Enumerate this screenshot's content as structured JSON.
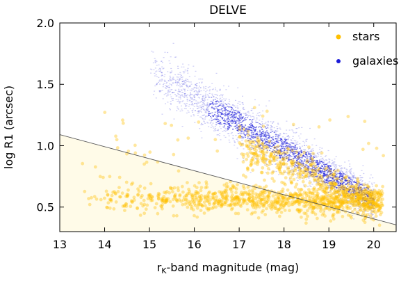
{
  "chart_data": {
    "type": "scatter",
    "title": "DELVE",
    "xlabel_main": "r",
    "xlabel_sub": "K",
    "xlabel_rest": "-band magnitude (mag)",
    "ylabel": "log R1 (arcsec)",
    "xlim": [
      13,
      20.5
    ],
    "ylim": [
      0.3,
      2.0
    ],
    "x_ticks": [
      13,
      14,
      15,
      16,
      17,
      18,
      19,
      20
    ],
    "x_tick_labels": [
      "13",
      "14",
      "15",
      "16",
      "17",
      "18",
      "19",
      "20"
    ],
    "y_ticks": [
      0.5,
      1.0,
      1.5,
      2.0
    ],
    "y_tick_labels": [
      "0.5",
      "1.0",
      "1.5",
      "2.0"
    ],
    "grid": false,
    "legend_position": "top-right",
    "series": [
      {
        "name": "stars",
        "color": "#ffc000",
        "description": "dense band at log R1 ~0.5-0.7 from r~13.5 to 20.2, plus a spur along the galaxy locus at r 17-20"
      },
      {
        "name": "galaxies",
        "color": "#1a1ad8",
        "description": "diagonal cloud from (r~15, logR1~1.6) down to (r~19.5, logR1~0.6)"
      }
    ],
    "cut_line": {
      "x": [
        13,
        20.5
      ],
      "y": [
        1.09,
        0.355
      ],
      "color": "#555555"
    },
    "shaded_region": {
      "description": "area below cut line shaded pale yellow",
      "color": "#fffbe8"
    }
  }
}
